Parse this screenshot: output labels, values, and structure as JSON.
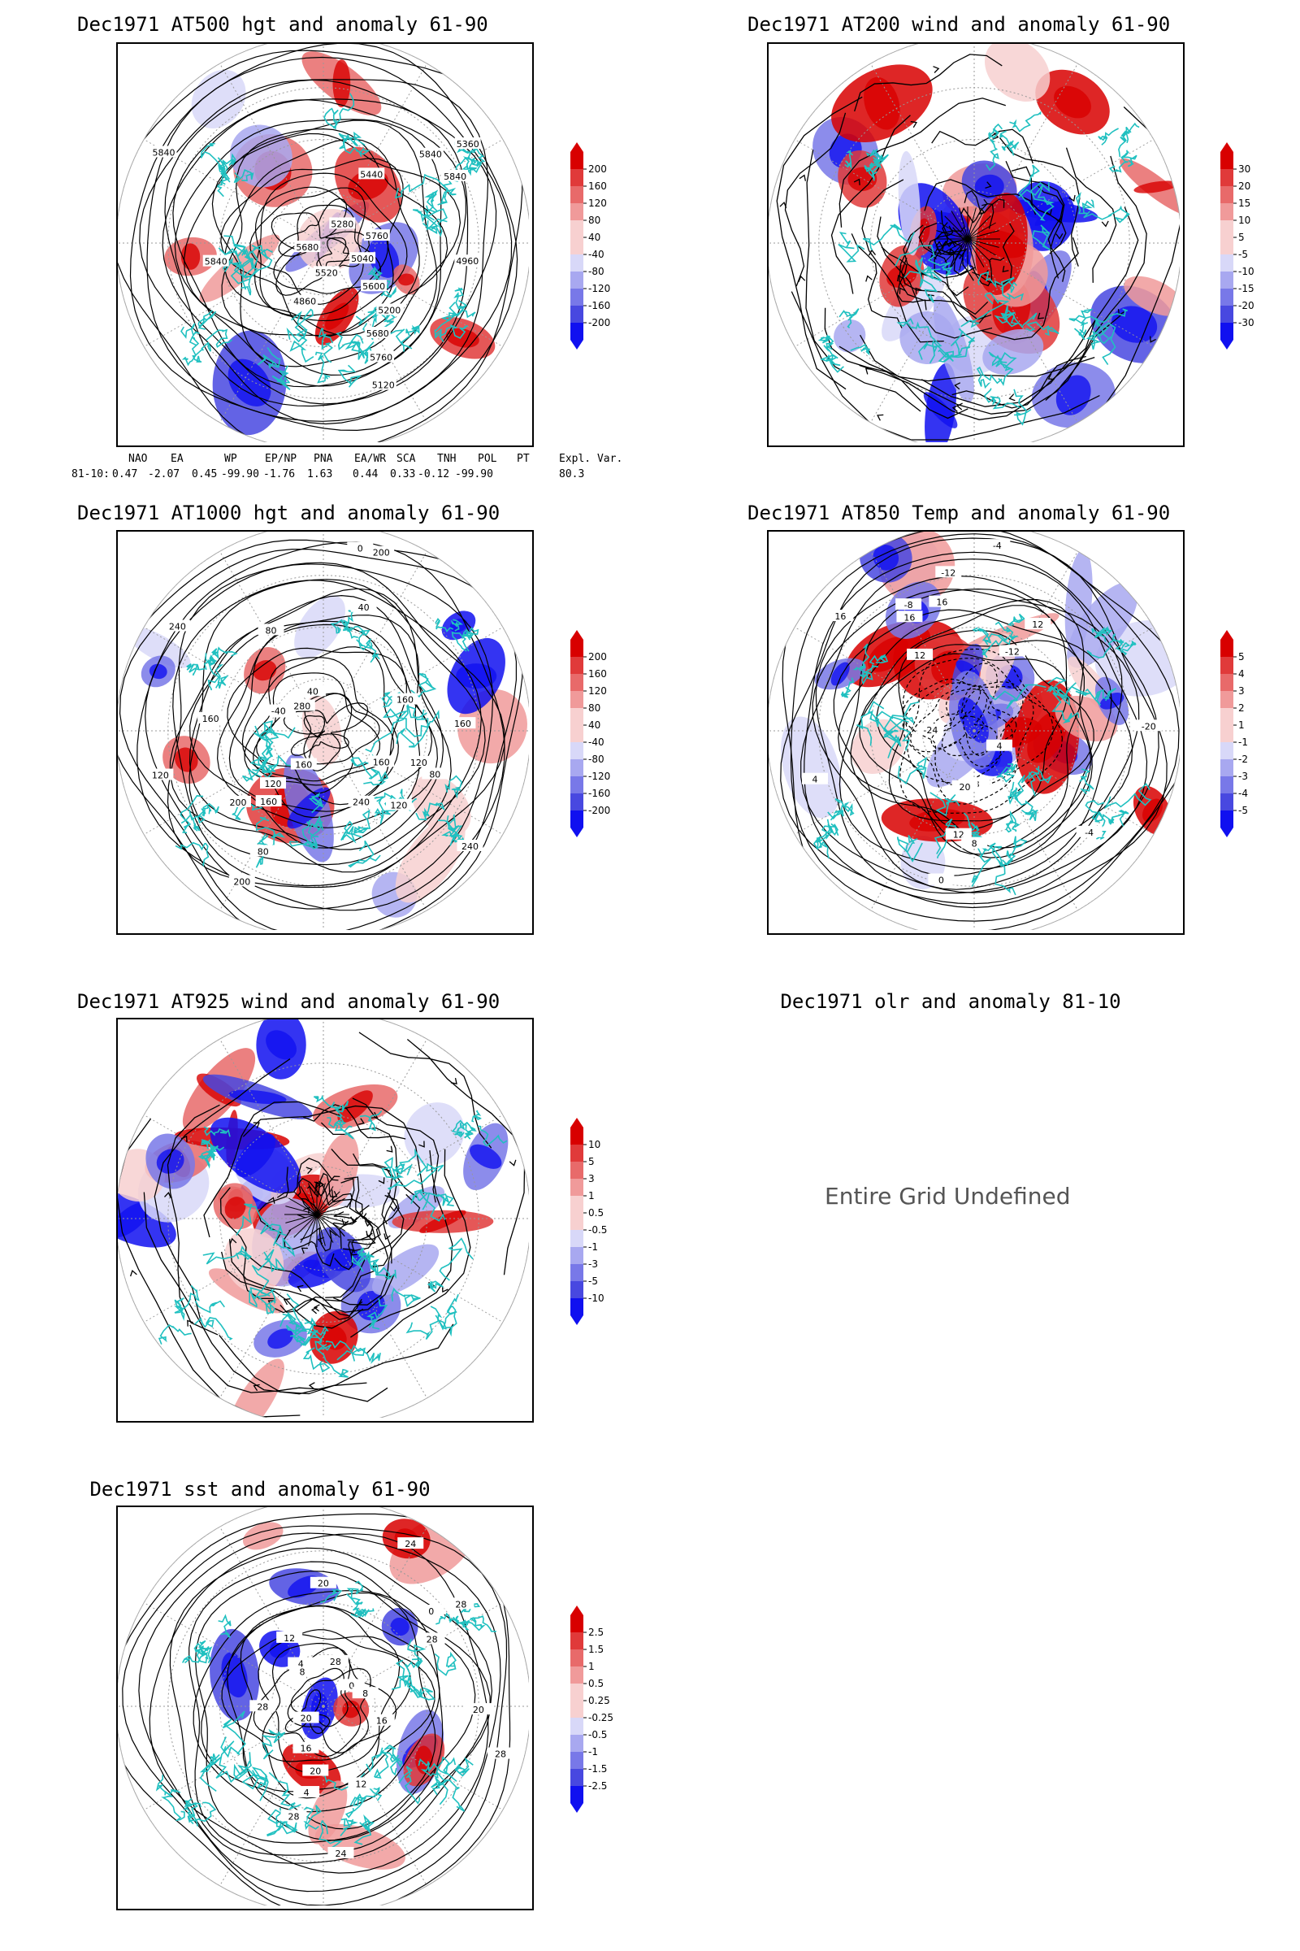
{
  "panels": [
    {
      "id": "p1",
      "title": "Dec1971 AT500 hgt and anomaly 61-90",
      "contour_labels": [
        "5840",
        "5760",
        "5680",
        "5200",
        "5120",
        "5040",
        "4960",
        "4860",
        "5280",
        "5360",
        "5440",
        "5520",
        "5600",
        "5680",
        "5840",
        "5760",
        "5840",
        "5840"
      ],
      "colorbar": [
        "200",
        "160",
        "120",
        "80",
        "40",
        "-40",
        "-80",
        "-120",
        "-160",
        "-200"
      ],
      "ctype": "hgt"
    },
    {
      "id": "p2",
      "title": "Dec1971 AT200 wind and anomaly 61-90",
      "contour_labels": [],
      "colorbar": [
        "30",
        "20",
        "15",
        "10",
        "5",
        "-5",
        "-10",
        "-15",
        "-20",
        "-30"
      ],
      "ctype": "wind"
    },
    {
      "id": "p3",
      "title": "Dec1971 AT1000 hgt and anomaly 61-90",
      "contour_labels": [
        "80",
        "120",
        "160",
        "240",
        "200",
        "80",
        "80",
        "40",
        "0",
        "160",
        "120",
        "160",
        "240",
        "240",
        "280",
        "200",
        "160",
        "120",
        "80",
        "40",
        "-40",
        "160",
        "200",
        "160",
        "120"
      ],
      "colorbar": [
        "200",
        "160",
        "120",
        "80",
        "40",
        "-40",
        "-80",
        "-120",
        "-160",
        "-200"
      ],
      "ctype": "hgt"
    },
    {
      "id": "p4",
      "title": "Dec1971 AT850 Temp and anomaly 61-90",
      "contour_labels": [
        "16",
        "12",
        "8",
        "4",
        "-4",
        "-12",
        "-20",
        "-24",
        "-12",
        "-8",
        "-4",
        "0",
        "4",
        "8",
        "12",
        "16",
        "20",
        "16",
        "12"
      ],
      "colorbar": [
        "5",
        "4",
        "3",
        "2",
        "1",
        "-1",
        "-2",
        "-3",
        "-4",
        "-5"
      ],
      "ctype": "temp"
    },
    {
      "id": "p5",
      "title": "Dec1971 AT925 wind and anomaly 61-90",
      "contour_labels": [],
      "colorbar": [
        "10",
        "5",
        "3",
        "1",
        "0.5",
        "-0.5",
        "-1",
        "-3",
        "-5",
        "-10"
      ],
      "ctype": "wind"
    },
    {
      "id": "p6",
      "title": "Dec1971 olr and anomaly 81-10",
      "undefined_text": "Entire Grid Undefined",
      "ctype": "none"
    },
    {
      "id": "p7",
      "title": "Dec1971 sst and anomaly 61-90",
      "contour_labels": [
        "28",
        "24",
        "24",
        "20",
        "20",
        "16",
        "12",
        "8",
        "4",
        "0",
        "28",
        "28",
        "28",
        "28",
        "20",
        "16",
        "12",
        "8",
        "4",
        "0",
        "20",
        "28"
      ],
      "colorbar": [
        "2.5",
        "1.5",
        "1",
        "0.5",
        "0.25",
        "-0.25",
        "-0.5",
        "-1",
        "-1.5",
        "-2.5"
      ],
      "ctype": "sst"
    }
  ],
  "indices": {
    "headers": [
      "NAO",
      "EA",
      "WP",
      "EP/NP",
      "PNA",
      "EA/WR",
      "SCA",
      "TNH",
      "POL",
      "PT",
      "Expl. Var."
    ],
    "row_label": "81-10:",
    "values": [
      "0.47",
      "-2.07",
      "0.45",
      "-99.90",
      "-1.76",
      "1.63",
      "0.44",
      "0.33",
      "-0.12",
      "-99.90",
      "80.3"
    ]
  },
  "colors": {
    "coast": "#20c0c0",
    "pos": [
      "#ffffff",
      "#f7d0d0",
      "#f09a9a",
      "#e86a6a",
      "#e03a3a",
      "#d80000"
    ],
    "neg": [
      "#ffffff",
      "#d8d8f8",
      "#a8a8f0",
      "#7878e8",
      "#4848e0",
      "#1010f0"
    ]
  }
}
